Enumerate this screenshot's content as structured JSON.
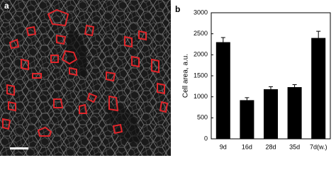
{
  "panel_labels": [
    "a",
    "b"
  ],
  "chart_data": {
    "type": "bar",
    "ylabel": "Cell area, a.u.",
    "categories": [
      "9d",
      "16d",
      "28d",
      "35d",
      "7d(w.)"
    ],
    "values": [
      2300,
      920,
      1180,
      1230,
      2400
    ],
    "errors": [
      110,
      60,
      60,
      60,
      160
    ],
    "color": "#000000",
    "ylim": [
      0,
      3000
    ],
    "yticks": [
      0,
      500,
      1000,
      1500,
      2000,
      2500,
      3000
    ],
    "grid": false
  }
}
